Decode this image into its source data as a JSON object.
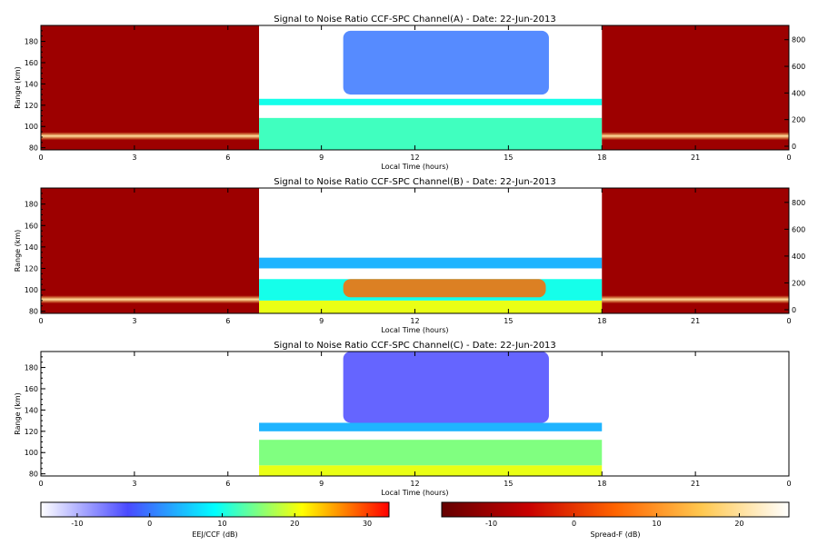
{
  "chart_data": [
    {
      "type": "heatmap",
      "title": "Signal to Noise Ratio CCF-SPC Channel(A) - Date: 22-Jun-2013",
      "xlabel": "Local Time (hours)",
      "ylabel": "Range (km)",
      "xlim": [
        0,
        24
      ],
      "ylim": [
        78,
        195
      ],
      "x_ticks": [
        "0",
        "3",
        "6",
        "9",
        "12",
        "15",
        "18",
        "21",
        "0"
      ],
      "y_ticks": [
        "80",
        "100",
        "120",
        "140",
        "160",
        "180"
      ],
      "right_axis_ticks": [
        "0",
        "200",
        "400",
        "600",
        "800"
      ],
      "colorbar": "EEJ/CCF (dB)",
      "regions": [
        {
          "x": [
            0,
            7
          ],
          "y": [
            78,
            195
          ],
          "colorbar": "Spread-F (dB)",
          "background_db": -10,
          "band_km": 91,
          "band_db": 22
        },
        {
          "x": [
            7,
            18
          ],
          "y": [
            78,
            195
          ],
          "colorbar": "EEJ/CCF (dB)",
          "layers": [
            {
              "y": [
                78,
                108
              ],
              "db": 12
            },
            {
              "y": [
                120,
                126
              ],
              "db": 10
            },
            {
              "x": [
                9.7,
                16.3
              ],
              "y": [
                130,
                190
              ],
              "db": 0
            }
          ]
        },
        {
          "x": [
            18,
            24
          ],
          "y": [
            78,
            195
          ],
          "colorbar": "Spread-F (dB)",
          "background_db": -10,
          "band_km": 91,
          "band_db": 22
        }
      ]
    },
    {
      "type": "heatmap",
      "title": "Signal to Noise Ratio CCF-SPC Channel(B) - Date: 22-Jun-2013",
      "xlabel": "Local Time (hours)",
      "ylabel": "Range (km)",
      "xlim": [
        0,
        24
      ],
      "ylim": [
        78,
        195
      ],
      "x_ticks": [
        "0",
        "3",
        "6",
        "9",
        "12",
        "15",
        "18",
        "21",
        "0"
      ],
      "y_ticks": [
        "80",
        "100",
        "120",
        "140",
        "160",
        "180"
      ],
      "right_axis_ticks": [
        "0",
        "200",
        "400",
        "600",
        "800"
      ],
      "colorbar": "EEJ/CCF (dB)",
      "regions": [
        {
          "x": [
            0,
            7
          ],
          "y": [
            78,
            195
          ],
          "colorbar": "Spread-F (dB)",
          "background_db": -10,
          "band_km": 91,
          "band_db": 22
        },
        {
          "x": [
            7,
            18
          ],
          "y": [
            78,
            195
          ],
          "colorbar": "EEJ/CCF (dB)",
          "layers": [
            {
              "y": [
                78,
                90
              ],
              "db": 20
            },
            {
              "y": [
                90,
                110
              ],
              "db": 10
            },
            {
              "x": [
                9.7,
                16.2
              ],
              "y": [
                93,
                110
              ],
              "db": 28
            },
            {
              "y": [
                120,
                130
              ],
              "db": 4
            }
          ]
        },
        {
          "x": [
            18,
            24
          ],
          "y": [
            78,
            195
          ],
          "colorbar": "Spread-F (dB)",
          "background_db": -10,
          "band_km": 91,
          "band_db": 22
        }
      ]
    },
    {
      "type": "heatmap",
      "title": "Signal to Noise Ratio CCF-SPC Channel(C) - Date: 22-Jun-2013",
      "xlabel": "Local Time (hours)",
      "ylabel": "Range (km)",
      "xlim": [
        0,
        24
      ],
      "ylim": [
        78,
        195
      ],
      "x_ticks": [
        "0",
        "3",
        "6",
        "9",
        "12",
        "15",
        "18",
        "21",
        "0"
      ],
      "y_ticks": [
        "80",
        "100",
        "120",
        "140",
        "160",
        "180"
      ],
      "colorbar": "EEJ/CCF (dB)",
      "regions": [
        {
          "x": [
            7,
            18
          ],
          "y": [
            78,
            195
          ],
          "colorbar": "EEJ/CCF (dB)",
          "layers": [
            {
              "y": [
                78,
                88
              ],
              "db": 20
            },
            {
              "y": [
                88,
                112
              ],
              "db": 15
            },
            {
              "y": [
                120,
                128
              ],
              "db": 4
            },
            {
              "x": [
                9.7,
                16.3
              ],
              "y": [
                128,
                195
              ],
              "db": -3
            }
          ]
        }
      ]
    }
  ],
  "colorbars": [
    {
      "label": "EEJ/CCF (dB)",
      "range": [
        -15,
        33
      ],
      "ticks": [
        "-10",
        "0",
        "10",
        "20",
        "30"
      ],
      "stops": [
        "#ffffff",
        "#4a4aff",
        "#00ffff",
        "#ffff00",
        "#ff0000"
      ]
    },
    {
      "label": "Spread-F (dB)",
      "range": [
        -16,
        26
      ],
      "ticks": [
        "-10",
        "0",
        "10",
        "20"
      ],
      "stops": [
        "#640000",
        "#c80000",
        "#ff6400",
        "#ffc850",
        "#ffffff"
      ]
    }
  ]
}
